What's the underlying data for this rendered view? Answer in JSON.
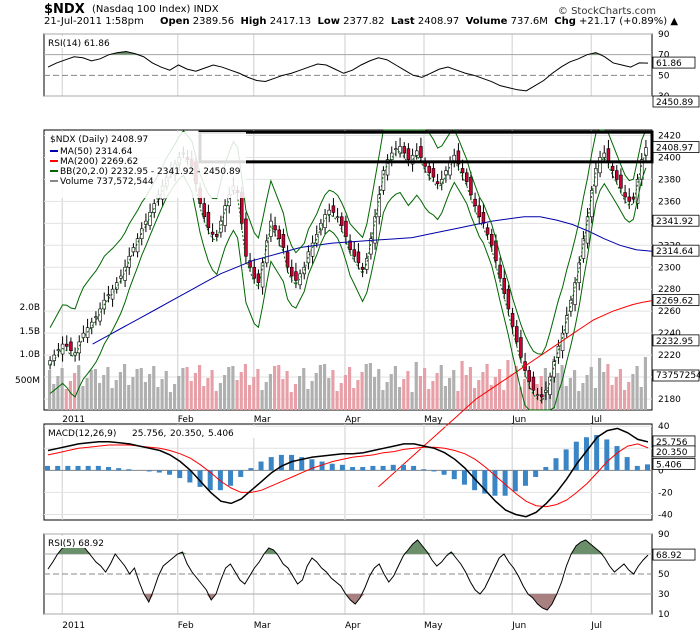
{
  "header": {
    "symbol": "$NDX",
    "name": "(Nasdaq 100 Index)",
    "exchange": "INDX",
    "date": "21-Jul-2011 1:58pm",
    "open_label": "Open",
    "open": "2389.56",
    "high_label": "High",
    "high": "2417.13",
    "low_label": "Low",
    "low": "2377.82",
    "last_label": "Last",
    "last": "2408.97",
    "volume_label": "Volume",
    "volume": "737.6M",
    "chg_label": "Chg",
    "chg": "+21.17 (+0.89%)",
    "copyright": "© StockCharts.com"
  },
  "colors": {
    "up": "#ffffff",
    "down": "#cc0033",
    "ma50": "#0000aa",
    "ma200": "#ff0000",
    "bb": "#006600",
    "vol": "#b0b0b0",
    "vol_down": "#e8a0a8",
    "macd_hist": "#3a85c6",
    "rsi_fill": "#6b8f6b",
    "rsi_fill_low": "#a88080"
  },
  "chart_data": [
    {
      "type": "line",
      "panel": "rsi14",
      "title": "RSI(14) 61.86",
      "ylim": [
        30,
        90
      ],
      "yticks": [
        90,
        70,
        50,
        30
      ],
      "values": [
        58,
        62,
        65,
        68,
        67,
        64,
        66,
        70,
        72,
        73,
        71,
        68,
        62,
        58,
        55,
        60,
        56,
        54,
        57,
        60,
        58,
        55,
        52,
        48,
        45,
        44,
        47,
        50,
        52,
        55,
        58,
        61,
        60,
        56,
        52,
        55,
        60,
        64,
        67,
        65,
        60,
        55,
        50,
        48,
        52,
        56,
        58,
        55,
        52,
        50,
        47,
        44,
        40,
        38,
        36,
        35,
        40,
        45,
        52,
        58,
        63,
        66,
        70,
        72,
        68,
        62,
        60,
        58,
        62,
        61.86
      ],
      "last_label": "61.86"
    },
    {
      "type": "candlestick",
      "panel": "price",
      "title": "$NDX (Daily) 2408.97",
      "ylim": [
        2170,
        2425
      ],
      "yticks": [
        2420,
        2400,
        2380,
        2360,
        2340,
        2320,
        2300,
        2280,
        2260,
        2240,
        2220,
        2200,
        2180
      ],
      "xlabels": [
        "2011",
        "Feb",
        "Mar",
        "Apr",
        "May",
        "Jun",
        "Jul"
      ],
      "legend": [
        {
          "name": "MA(50) 2314.64",
          "color": "#0000aa"
        },
        {
          "name": "MA(200) 2269.62",
          "color": "#ff0000"
        },
        {
          "name": "BB(20,2.0) 2232.95 - 2341.92 - 2450.89",
          "color": "#006600"
        },
        {
          "name": "Volume 737,572,544",
          "color": "#888888"
        }
      ],
      "close": [
        2215,
        2220,
        2225,
        2230,
        2228,
        2224,
        2222,
        2232,
        2240,
        2245,
        2250,
        2255,
        2262,
        2270,
        2275,
        2280,
        2286,
        2292,
        2300,
        2310,
        2318,
        2326,
        2335,
        2342,
        2350,
        2358,
        2366,
        2374,
        2382,
        2388,
        2394,
        2400,
        2404,
        2398,
        2392,
        2376,
        2358,
        2346,
        2336,
        2330,
        2328,
        2342,
        2356,
        2366,
        2374,
        2368,
        2340,
        2310,
        2300,
        2290,
        2286,
        2304,
        2324,
        2342,
        2334,
        2326,
        2318,
        2300,
        2292,
        2288,
        2294,
        2300,
        2314,
        2322,
        2330,
        2340,
        2348,
        2352,
        2350,
        2346,
        2338,
        2328,
        2316,
        2310,
        2304,
        2298,
        2308,
        2326,
        2346,
        2366,
        2388,
        2398,
        2404,
        2408,
        2410,
        2404,
        2398,
        2402,
        2406,
        2400,
        2392,
        2386,
        2382,
        2376,
        2380,
        2388,
        2396,
        2402,
        2394,
        2386,
        2378,
        2366,
        2356,
        2346,
        2340,
        2330,
        2320,
        2306,
        2290,
        2276,
        2262,
        2246,
        2232,
        2218,
        2206,
        2196,
        2188,
        2184,
        2182,
        2188,
        2200,
        2214,
        2228,
        2240,
        2256,
        2270,
        2286,
        2304,
        2326,
        2346,
        2370,
        2390,
        2400,
        2404,
        2396,
        2388,
        2380,
        2372,
        2364,
        2360,
        2362,
        2380,
        2398,
        2408.97
      ],
      "ma50": [
        2230,
        2238,
        2246,
        2254,
        2262,
        2270,
        2278,
        2286,
        2294,
        2300,
        2306,
        2310,
        2314,
        2318,
        2320,
        2322,
        2323,
        2324,
        2325,
        2326,
        2327,
        2330,
        2333,
        2336,
        2339,
        2342,
        2344,
        2346,
        2346,
        2343,
        2339,
        2333,
        2326,
        2320,
        2316,
        2314.64
      ],
      "ma200": [
        2100,
        2108,
        2116,
        2124,
        2132,
        2140,
        2148,
        2156,
        2164,
        2172,
        2180,
        2186,
        2192,
        2198,
        2204,
        2210,
        2216,
        2222,
        2228,
        2234,
        2240,
        2246,
        2252,
        2256,
        2260,
        2263,
        2266,
        2268,
        2269.62
      ],
      "last_price": "2408.97",
      "price_labels": [
        "2450.89",
        "2408.97",
        "2341.92",
        "2314.64",
        "2269.62",
        "2232.95"
      ],
      "volume_ticks": [
        "2.0B",
        "1.5B",
        "1.0B",
        "500M"
      ],
      "volume_last": "737572544"
    },
    {
      "type": "line",
      "panel": "macd",
      "title": "MACD(12,26,9) 25.756, 20.350, 5.406",
      "legend": [
        {
          "name": "25.756",
          "color": "#000000"
        },
        {
          "name": "20.350",
          "color": "#ff0000"
        },
        {
          "name": "5.406",
          "color": "#3a85c6"
        }
      ],
      "ylim": [
        -45,
        42
      ],
      "yticks": [
        40,
        20,
        0,
        -20,
        -40
      ],
      "macd": [
        18,
        20,
        22,
        24,
        25,
        26,
        26,
        25,
        24,
        22,
        20,
        18,
        14,
        8,
        0,
        -10,
        -20,
        -28,
        -30,
        -26,
        -18,
        -10,
        -2,
        4,
        8,
        10,
        12,
        13,
        14,
        15,
        15,
        16,
        18,
        20,
        22,
        24,
        24,
        22,
        20,
        16,
        10,
        2,
        -8,
        -18,
        -28,
        -36,
        -40,
        -42,
        -38,
        -30,
        -20,
        -8,
        6,
        18,
        30,
        36,
        38,
        34,
        28,
        25.756
      ],
      "signal": [
        14,
        16,
        18,
        20,
        21,
        22,
        23,
        23,
        23,
        22,
        21,
        20,
        18,
        15,
        11,
        5,
        -2,
        -10,
        -16,
        -20,
        -20,
        -18,
        -14,
        -10,
        -6,
        -2,
        2,
        5,
        8,
        10,
        12,
        13,
        14,
        16,
        17,
        19,
        20,
        21,
        21,
        20,
        18,
        15,
        10,
        3,
        -5,
        -13,
        -21,
        -28,
        -32,
        -33,
        -31,
        -27,
        -20,
        -12,
        -2,
        8,
        16,
        22,
        24,
        20.35
      ],
      "last_labels": [
        "25.756",
        "20.350",
        "5.406"
      ]
    },
    {
      "type": "line",
      "panel": "rsi5",
      "title": "RSI(5) 68.92",
      "ylim": [
        10,
        90
      ],
      "yticks": [
        90,
        70,
        50,
        30,
        10
      ],
      "values": [
        55,
        62,
        70,
        76,
        78,
        80,
        82,
        80,
        74,
        68,
        62,
        58,
        52,
        60,
        70,
        64,
        58,
        50,
        56,
        42,
        30,
        22,
        34,
        48,
        58,
        62,
        66,
        70,
        72,
        60,
        52,
        46,
        40,
        34,
        24,
        30,
        44,
        56,
        60,
        52,
        44,
        40,
        48,
        56,
        62,
        70,
        76,
        74,
        68,
        60,
        56,
        48,
        40,
        44,
        58,
        66,
        62,
        56,
        52,
        46,
        42,
        38,
        30,
        24,
        20,
        26,
        36,
        48,
        56,
        60,
        50,
        42,
        48,
        58,
        68,
        74,
        80,
        84,
        78,
        72,
        64,
        58,
        62,
        68,
        72,
        66,
        60,
        52,
        42,
        34,
        30,
        36,
        46,
        56,
        66,
        70,
        62,
        56,
        48,
        38,
        30,
        26,
        20,
        16,
        14,
        20,
        30,
        42,
        58,
        70,
        78,
        82,
        84,
        80,
        76,
        72,
        66,
        58,
        52,
        56,
        60,
        54,
        50,
        58,
        64,
        68.92
      ],
      "last_label": "68.92"
    }
  ],
  "axis": {
    "month_labels": [
      "2011",
      "Feb",
      "Mar",
      "Apr",
      "May",
      "Jun",
      "Jul"
    ],
    "rsi14_ticks": [
      "90",
      "70",
      "50",
      "30"
    ],
    "price_ticks": [
      "2420",
      "2400",
      "2380",
      "2360",
      "2340",
      "2320",
      "2300",
      "2280",
      "2260",
      "2240",
      "2220",
      "2200",
      "2180"
    ],
    "macd_ticks": [
      "40",
      "20",
      "0",
      "-20",
      "-40"
    ],
    "rsi5_ticks": [
      "90",
      "70",
      "50",
      "30",
      "10"
    ]
  }
}
